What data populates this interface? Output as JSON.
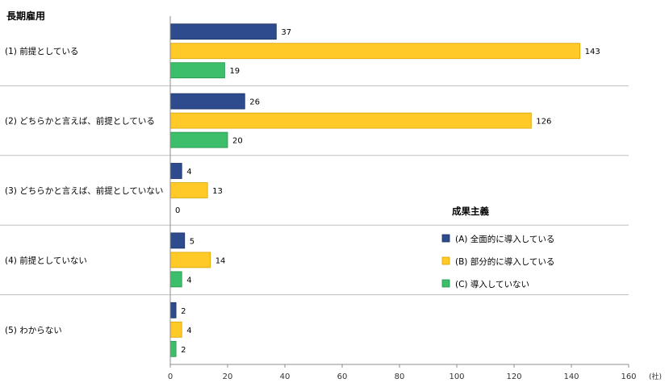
{
  "chart_data": {
    "type": "bar",
    "orientation": "horizontal",
    "title": "長期雇用",
    "categories": [
      "(1) 前提としている",
      "(2) どちらかと言えば、前提としている",
      "(3) どちらかと言えば、前提としていない",
      "(4) 前提としていない",
      "(5) わからない"
    ],
    "series": [
      {
        "name": "(A) 全面的に導入している",
        "values": [
          37,
          26,
          4,
          5,
          2
        ],
        "color": "#2E4B8E"
      },
      {
        "name": "(B) 部分的に導入している",
        "values": [
          143,
          126,
          13,
          14,
          4
        ],
        "color": "#FFC928"
      },
      {
        "name": "(C) 導入していない",
        "values": [
          19,
          20,
          0,
          4,
          2
        ],
        "color": "#3CBE6A"
      }
    ],
    "xlim": [
      0,
      160
    ],
    "xticks": [
      0,
      20,
      40,
      60,
      80,
      100,
      120,
      140,
      160
    ],
    "x_unit": "(社)",
    "legend_title": "成果主義",
    "legend_position": "right",
    "grid": "category separators"
  }
}
